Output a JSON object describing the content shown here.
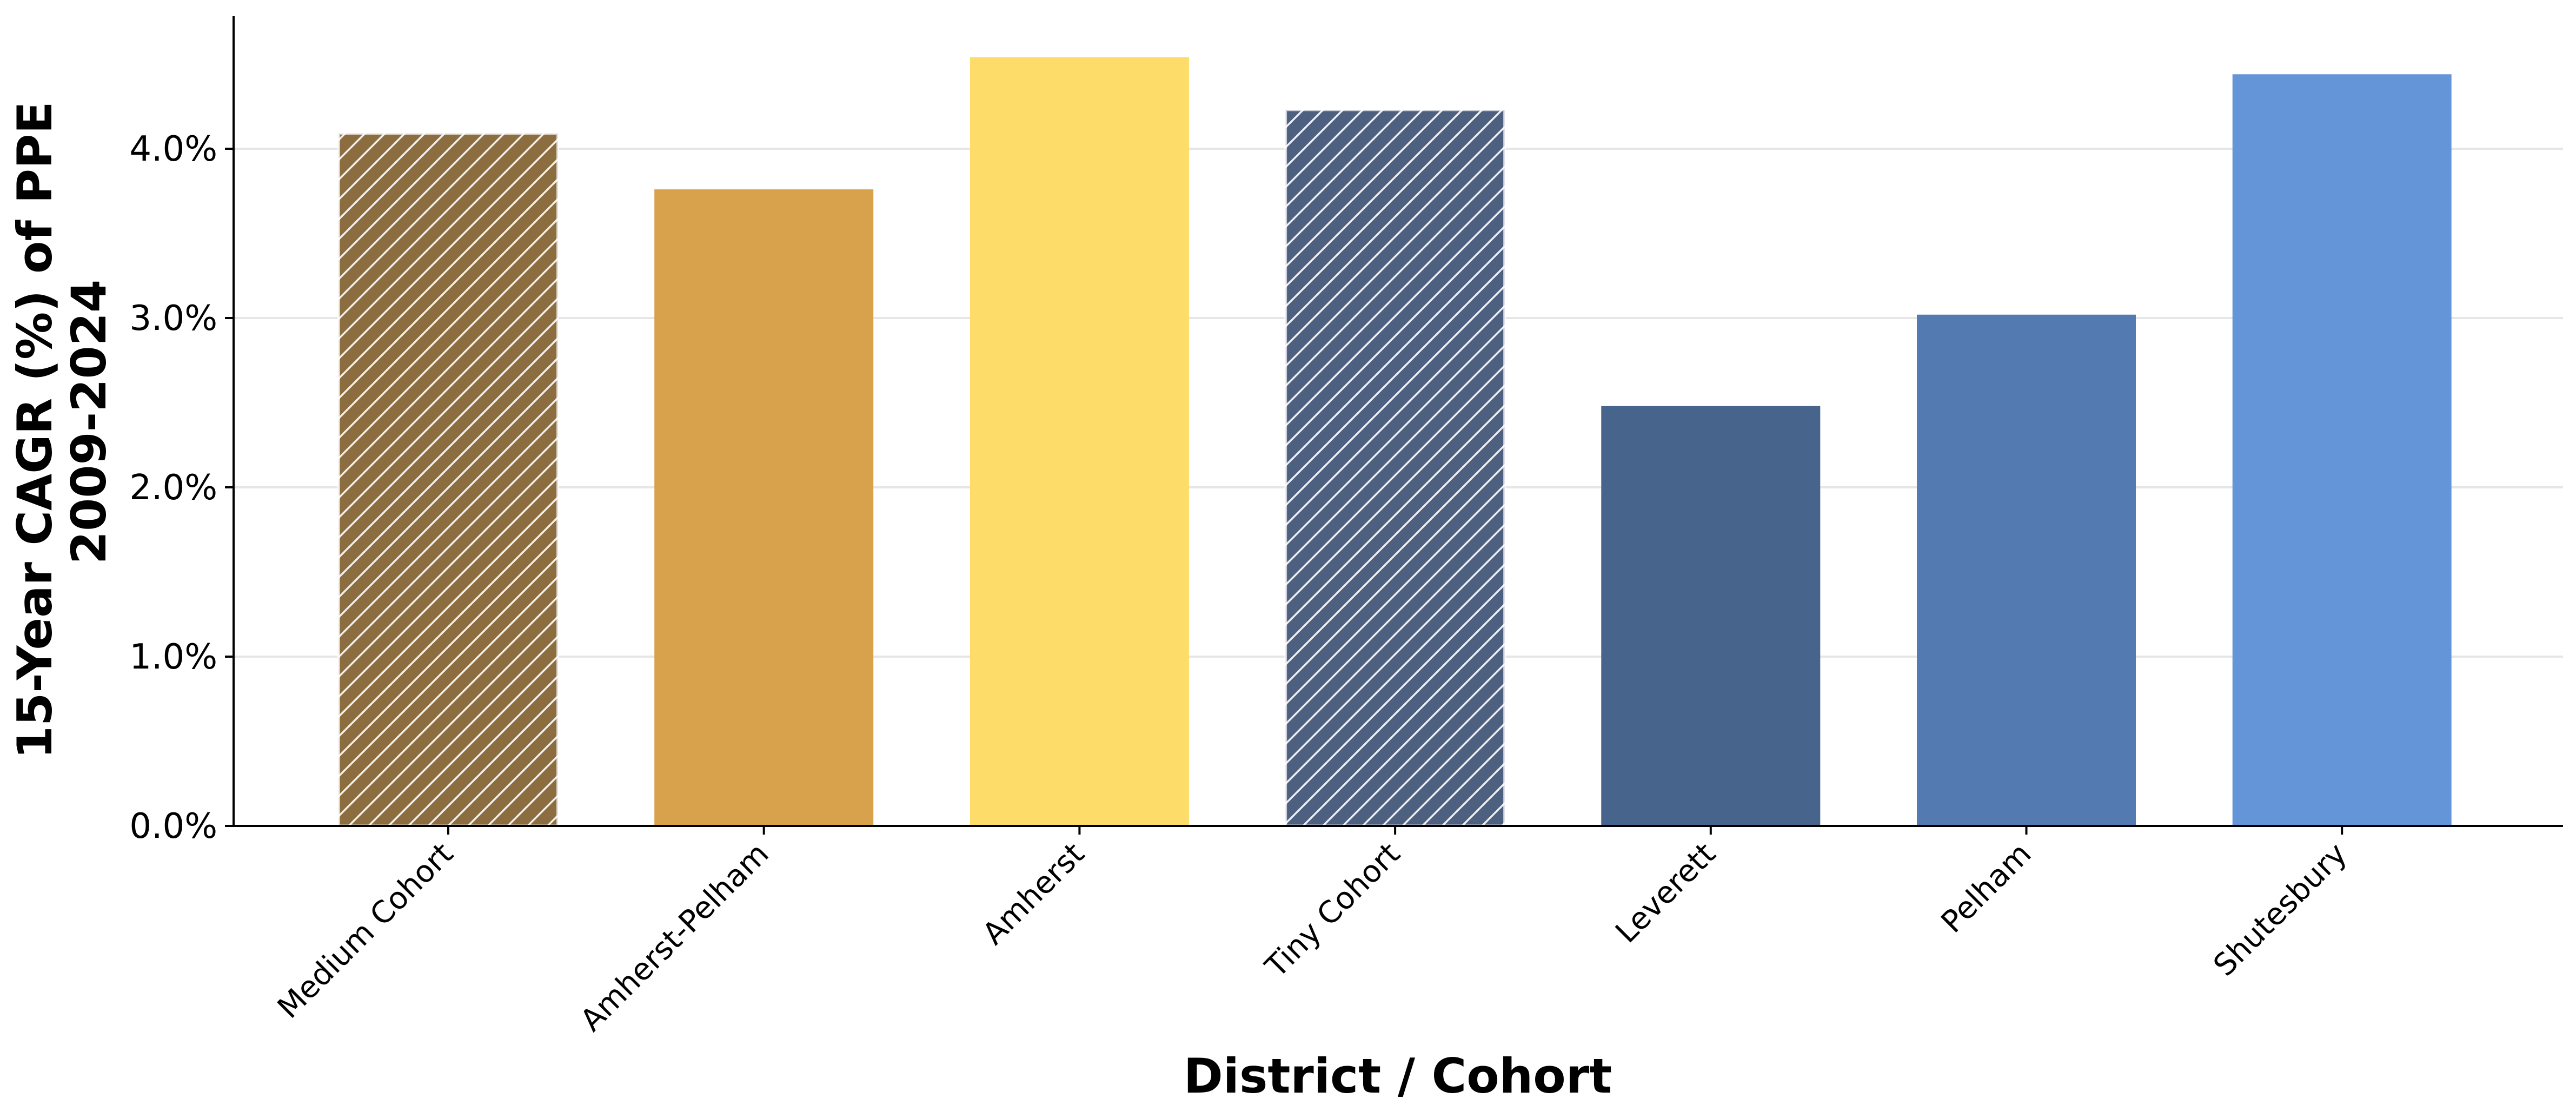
{
  "chart_data": {
    "type": "bar",
    "title": "",
    "xlabel": "District / Cohort",
    "ylabel_lines": [
      "15-Year CAGR (%) of PPE",
      "2009-2024"
    ],
    "ylim": [
      0,
      4.75
    ],
    "yticks": [
      0,
      1,
      2,
      3,
      4
    ],
    "ytick_labels": [
      "0.0%",
      "1.0%",
      "2.0%",
      "3.0%",
      "4.0%"
    ],
    "grid": "horizontal",
    "legend": "none",
    "categories": [
      "Medium Cohort",
      "Amherst-Pelham",
      "Amherst",
      "Tiny Cohort",
      "Leverett",
      "Pelham",
      "Shutesbury"
    ],
    "values": [
      4.09,
      3.76,
      4.54,
      4.23,
      2.48,
      3.02,
      4.44
    ],
    "bar_colors": [
      "#8c6d3f",
      "#d8a24c",
      "#fddc6a",
      "#4e6080",
      "#46648c",
      "#537bb2",
      "#6495d9"
    ],
    "hatched": [
      true,
      false,
      false,
      true,
      false,
      false,
      false
    ]
  }
}
